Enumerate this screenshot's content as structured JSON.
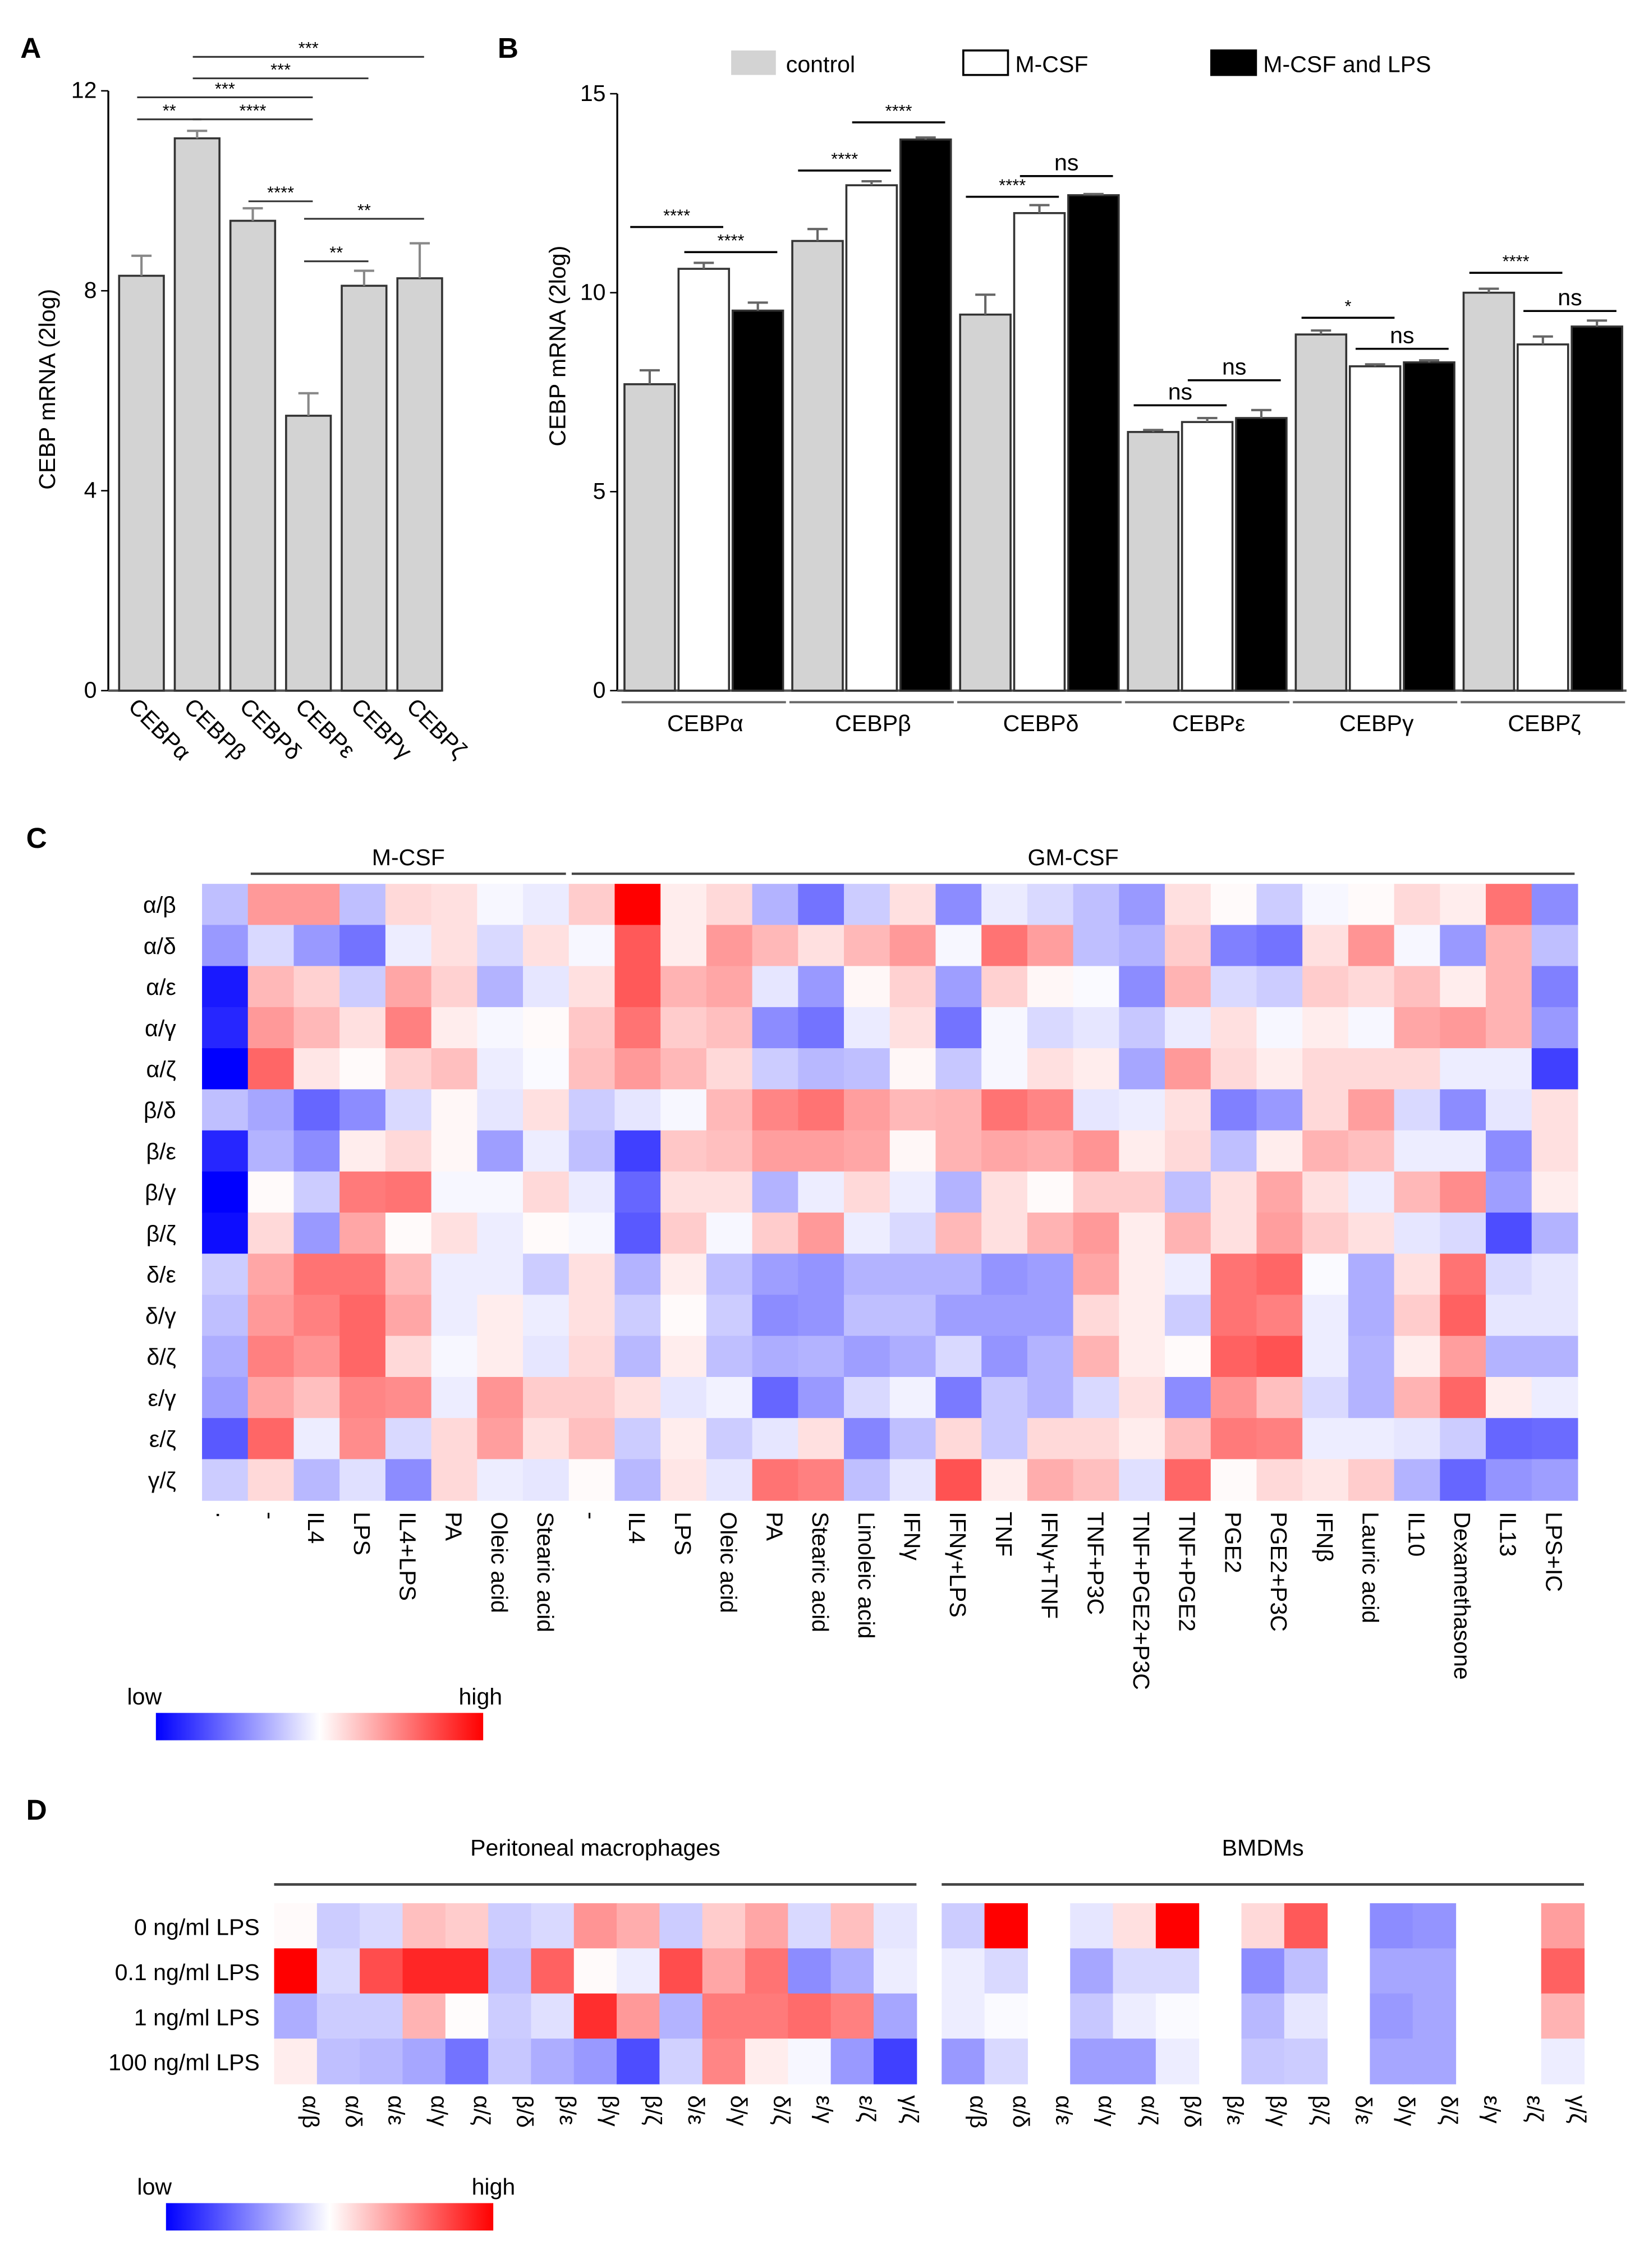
{
  "panels": {
    "a": "A",
    "b": "B",
    "c": "C",
    "d": "D"
  },
  "chart_data": [
    {
      "type": "bar",
      "panel": "A",
      "ylabel": "CEBP mRNA (2log)",
      "ylim": [
        0,
        12
      ],
      "yticks": [
        "0",
        "4",
        "8",
        "12"
      ],
      "categories": [
        "CEBPα",
        "CEBPβ",
        "CEBPδ",
        "CEBPε",
        "CEBPγ",
        "CEBPζ"
      ],
      "values": [
        8.3,
        11.05,
        9.4,
        5.5,
        8.1,
        8.25
      ],
      "errors": [
        0.4,
        0.15,
        0.25,
        0.45,
        0.3,
        0.7
      ],
      "color": "#d3d3d3",
      "significance": [
        {
          "from": 0,
          "to": 1,
          "y": 11.43,
          "label": "**"
        },
        {
          "from": 1,
          "to": 3,
          "y": 11.43,
          "label": "****"
        },
        {
          "from": 0,
          "to": 3,
          "y": 11.87,
          "label": "***"
        },
        {
          "from": 1,
          "to": 4,
          "y": 12.25,
          "label": "***"
        },
        {
          "from": 1,
          "to": 5,
          "y": 12.68,
          "label": "***"
        },
        {
          "from": 2,
          "to": 3,
          "y": 9.79,
          "label": "****"
        },
        {
          "from": 3,
          "to": 4,
          "y": 8.59,
          "label": "**"
        },
        {
          "from": 3,
          "to": 5,
          "y": 9.44,
          "label": "**"
        }
      ]
    },
    {
      "type": "bar",
      "panel": "B",
      "ylabel": "CEBP mRNA (2log)",
      "ylim": [
        0,
        15
      ],
      "yticks": [
        "0",
        "5",
        "10",
        "15"
      ],
      "categories": [
        "CEBPα",
        "CEBPβ",
        "CEBPδ",
        "CEBPε",
        "CEBPγ",
        "CEBPζ"
      ],
      "legend_position": "top",
      "series": [
        {
          "name": "control",
          "color": "#d3d3d3",
          "values": [
            7.7,
            11.3,
            9.45,
            6.5,
            8.95,
            10.0
          ],
          "errors": [
            0.35,
            0.3,
            0.5,
            0.05,
            0.1,
            0.1
          ]
        },
        {
          "name": "M-CSF",
          "color": "#ffffff",
          "values": [
            10.6,
            12.7,
            12.0,
            6.75,
            8.15,
            8.7
          ],
          "errors": [
            0.15,
            0.1,
            0.2,
            0.1,
            0.05,
            0.2
          ]
        },
        {
          "name": "M-CSF and LPS",
          "color": "#000000",
          "values": [
            9.55,
            13.85,
            12.45,
            6.85,
            8.25,
            9.15
          ],
          "errors": [
            0.2,
            0.05,
            0.03,
            0.2,
            0.05,
            0.15
          ]
        }
      ],
      "significance": [
        {
          "group": 0,
          "from": 0,
          "to": 1,
          "y": 11.65,
          "label": "****"
        },
        {
          "group": 0,
          "from": 1,
          "to": 2,
          "y": 11.02,
          "label": "****"
        },
        {
          "group": 1,
          "from": 0,
          "to": 1,
          "y": 13.07,
          "label": "****"
        },
        {
          "group": 1,
          "from": 1,
          "to": 2,
          "y": 14.28,
          "label": "****"
        },
        {
          "group": 2,
          "from": 0,
          "to": 1,
          "y": 12.41,
          "label": "****"
        },
        {
          "group": 2,
          "from": 1,
          "to": 2,
          "y": 12.93,
          "label": "ns"
        },
        {
          "group": 3,
          "from": 0,
          "to": 1,
          "y": 7.17,
          "label": "ns"
        },
        {
          "group": 3,
          "from": 1,
          "to": 2,
          "y": 7.8,
          "label": "ns"
        },
        {
          "group": 4,
          "from": 0,
          "to": 1,
          "y": 9.37,
          "label": "*"
        },
        {
          "group": 4,
          "from": 1,
          "to": 2,
          "y": 8.59,
          "label": "ns"
        },
        {
          "group": 5,
          "from": 0,
          "to": 1,
          "y": 10.5,
          "label": "****"
        },
        {
          "group": 5,
          "from": 1,
          "to": 2,
          "y": 9.54,
          "label": "ns"
        }
      ]
    },
    {
      "type": "heatmap",
      "panel": "C",
      "scale": {
        "low": "low",
        "high": "high",
        "low_color": "#0000ff",
        "mid_color": "#ffffff",
        "high_color": "#ff0000",
        "range": [
          -1,
          1
        ]
      },
      "groups": [
        {
          "label": "M-CSF",
          "start": 1,
          "end": 7
        },
        {
          "label": "GM-CSF",
          "start": 8,
          "end": 29
        }
      ],
      "rows": [
        "α/β",
        "α/δ",
        "α/ε",
        "α/γ",
        "α/ζ",
        "β/δ",
        "β/ε",
        "β/γ",
        "β/ζ",
        "δ/ε",
        "δ/γ",
        "δ/ζ",
        "ε/γ",
        "ε/ζ",
        "γ/ζ"
      ],
      "columns": [
        ".",
        "-",
        "IL4",
        "LPS",
        "IL4+LPS",
        "PA",
        "Oleic acid",
        "Stearic acid",
        "-",
        "IL4",
        "LPS",
        "Oleic acid",
        "PA",
        "Stearic acid",
        "Linoleic acid",
        "IFNγ",
        "IFNγ+LPS",
        "TNF",
        "IFNγ+TNF",
        "TNF+P3C",
        "TNF+PGE2+P3C",
        "TNF+PGE2",
        "PGE2",
        "PGE2+P3C",
        "IFNβ",
        "Lauric acid",
        "IL10",
        "Dexamethasone",
        "IL13",
        "LPS+IC"
      ],
      "values": [
        [
          -0.25,
          0.4,
          0.4,
          -0.25,
          0.15,
          0.12,
          -0.03,
          -0.08,
          0.2,
          1.0,
          0.07,
          0.15,
          -0.3,
          -0.55,
          -0.2,
          0.12,
          -0.45,
          -0.08,
          -0.15,
          -0.25,
          -0.4,
          0.12,
          0.02,
          -0.2,
          -0.03,
          0.02,
          0.15,
          0.07,
          0.55,
          -0.45
        ],
        [
          -0.4,
          -0.15,
          -0.4,
          -0.55,
          -0.07,
          0.12,
          -0.15,
          0.12,
          -0.03,
          0.65,
          0.07,
          0.4,
          0.28,
          0.12,
          0.28,
          0.4,
          -0.03,
          0.55,
          0.38,
          -0.25,
          -0.3,
          0.2,
          -0.5,
          -0.55,
          0.12,
          0.42,
          -0.03,
          -0.4,
          0.3,
          -0.25
        ],
        [
          -0.9,
          0.28,
          0.18,
          -0.2,
          0.35,
          0.18,
          -0.3,
          -0.1,
          0.12,
          0.65,
          0.3,
          0.35,
          -0.1,
          -0.4,
          0.03,
          0.18,
          -0.38,
          0.18,
          0.03,
          -0.02,
          -0.45,
          0.3,
          -0.15,
          -0.2,
          0.2,
          0.15,
          0.25,
          0.07,
          0.3,
          -0.5
        ],
        [
          -0.85,
          0.4,
          0.28,
          0.12,
          0.5,
          0.07,
          -0.03,
          0.02,
          0.22,
          0.55,
          0.2,
          0.25,
          -0.45,
          -0.55,
          -0.08,
          0.12,
          -0.55,
          -0.03,
          -0.15,
          -0.1,
          -0.22,
          -0.08,
          0.12,
          -0.03,
          0.07,
          -0.03,
          0.35,
          0.4,
          0.3,
          -0.4
        ],
        [
          -1.0,
          0.6,
          0.1,
          0.02,
          0.18,
          0.25,
          -0.07,
          -0.02,
          0.25,
          0.4,
          0.28,
          0.15,
          -0.2,
          -0.28,
          -0.25,
          0.03,
          -0.22,
          -0.03,
          0.12,
          0.07,
          -0.35,
          0.4,
          0.15,
          0.07,
          0.15,
          0.15,
          0.15,
          -0.07,
          -0.07,
          -0.75
        ],
        [
          -0.25,
          -0.35,
          -0.6,
          -0.45,
          -0.15,
          0.03,
          -0.1,
          0.12,
          -0.2,
          -0.1,
          -0.03,
          0.28,
          0.48,
          0.55,
          0.38,
          0.28,
          0.3,
          0.55,
          0.48,
          -0.1,
          -0.07,
          0.12,
          -0.5,
          -0.4,
          0.15,
          0.38,
          -0.15,
          -0.45,
          -0.1,
          0.12
        ],
        [
          -0.85,
          -0.3,
          -0.45,
          0.07,
          0.15,
          0.03,
          -0.38,
          -0.07,
          -0.25,
          -0.75,
          0.22,
          0.25,
          0.38,
          0.38,
          0.35,
          0.03,
          0.3,
          0.35,
          0.32,
          0.42,
          0.07,
          0.15,
          -0.25,
          0.07,
          0.3,
          0.25,
          -0.07,
          -0.07,
          -0.45,
          0.12
        ],
        [
          -1.0,
          0.02,
          -0.2,
          0.52,
          0.55,
          -0.03,
          -0.03,
          0.15,
          -0.08,
          -0.6,
          0.12,
          0.12,
          -0.3,
          -0.07,
          0.15,
          -0.07,
          -0.3,
          0.12,
          0.02,
          0.2,
          0.2,
          -0.25,
          0.12,
          0.35,
          0.12,
          -0.07,
          0.28,
          0.45,
          -0.38,
          0.07
        ],
        [
          -0.95,
          0.15,
          -0.4,
          0.35,
          0.02,
          0.12,
          -0.07,
          0.02,
          -0.03,
          -0.65,
          0.2,
          -0.03,
          0.2,
          0.4,
          -0.07,
          -0.15,
          0.28,
          0.12,
          0.3,
          0.4,
          0.07,
          0.3,
          0.12,
          0.38,
          0.2,
          0.12,
          -0.1,
          -0.15,
          -0.7,
          -0.3
        ],
        [
          -0.2,
          0.35,
          0.55,
          0.55,
          0.28,
          -0.07,
          -0.07,
          -0.2,
          0.12,
          -0.3,
          0.07,
          -0.25,
          -0.38,
          -0.42,
          -0.3,
          -0.3,
          -0.3,
          -0.42,
          -0.38,
          0.35,
          0.07,
          -0.07,
          0.55,
          0.6,
          -0.02,
          -0.32,
          0.12,
          0.55,
          -0.15,
          -0.1
        ],
        [
          -0.25,
          0.4,
          0.5,
          0.6,
          0.35,
          -0.07,
          0.07,
          -0.07,
          0.12,
          -0.2,
          0.02,
          -0.2,
          -0.45,
          -0.42,
          -0.25,
          -0.25,
          -0.38,
          -0.38,
          -0.38,
          0.15,
          0.07,
          -0.2,
          0.55,
          0.5,
          -0.07,
          -0.32,
          0.2,
          0.62,
          -0.1,
          -0.1
        ],
        [
          -0.32,
          0.5,
          0.42,
          0.6,
          0.15,
          -0.03,
          0.07,
          -0.1,
          0.15,
          -0.28,
          0.07,
          -0.25,
          -0.32,
          -0.3,
          -0.38,
          -0.32,
          -0.15,
          -0.42,
          -0.3,
          0.3,
          0.07,
          0.02,
          0.62,
          0.68,
          -0.07,
          -0.3,
          0.07,
          0.38,
          -0.3,
          -0.3
        ],
        [
          -0.38,
          0.35,
          0.25,
          0.48,
          0.45,
          -0.07,
          0.42,
          0.2,
          0.2,
          0.12,
          -0.1,
          -0.05,
          -0.6,
          -0.4,
          -0.15,
          -0.05,
          -0.52,
          -0.22,
          -0.3,
          -0.15,
          0.12,
          -0.45,
          0.42,
          0.25,
          -0.15,
          -0.3,
          0.3,
          0.6,
          0.07,
          -0.07
        ],
        [
          -0.65,
          0.6,
          -0.07,
          0.45,
          -0.15,
          0.15,
          0.38,
          0.12,
          0.25,
          -0.2,
          0.07,
          -0.2,
          -0.1,
          0.12,
          -0.48,
          -0.25,
          0.15,
          -0.22,
          0.15,
          0.15,
          0.07,
          0.25,
          0.52,
          0.5,
          -0.07,
          -0.07,
          -0.1,
          -0.2,
          -0.6,
          -0.58
        ],
        [
          -0.2,
          0.15,
          -0.28,
          -0.12,
          -0.45,
          0.15,
          -0.07,
          -0.1,
          0.02,
          -0.28,
          0.1,
          -0.1,
          0.55,
          0.5,
          -0.25,
          -0.1,
          0.68,
          0.07,
          0.32,
          0.25,
          -0.12,
          0.6,
          0.02,
          0.15,
          0.1,
          0.2,
          -0.3,
          -0.6,
          -0.42,
          -0.38
        ]
      ]
    },
    {
      "type": "heatmap",
      "panel": "D",
      "scale": {
        "low": "low",
        "high": "high",
        "low_color": "#0000ff",
        "mid_color": "#ffffff",
        "high_color": "#ff0000",
        "range": [
          -1,
          1
        ]
      },
      "rows": [
        "0 ng/ml LPS",
        "0.1 ng/ml LPS",
        "1 ng/ml LPS",
        "100 ng/ml LPS"
      ],
      "blocks": [
        {
          "label": "Peritoneal macrophages",
          "columns": [
            "α/β",
            "α/δ",
            "α/ε",
            "α/γ",
            "α/ζ",
            "β/δ",
            "β/ε",
            "β/γ",
            "β/ζ",
            "δ/ε",
            "δ/γ",
            "δ/ζ",
            "ε/γ",
            "ε/ζ",
            "γ/ζ"
          ],
          "values": [
            [
              0.02,
              -0.2,
              -0.15,
              0.25,
              0.2,
              -0.2,
              -0.15,
              0.42,
              0.32,
              -0.2,
              0.2,
              0.35,
              -0.15,
              0.25,
              -0.1
            ],
            [
              1.0,
              -0.15,
              0.7,
              0.85,
              0.85,
              -0.25,
              0.62,
              0.02,
              -0.07,
              0.7,
              0.35,
              0.55,
              -0.45,
              -0.32,
              -0.07
            ],
            [
              -0.32,
              -0.2,
              -0.2,
              0.3,
              0.01,
              -0.2,
              -0.12,
              0.82,
              0.4,
              -0.3,
              0.52,
              0.52,
              0.58,
              0.5,
              -0.35
            ],
            [
              0.07,
              -0.25,
              -0.28,
              -0.35,
              -0.55,
              -0.22,
              -0.32,
              -0.4,
              -0.7,
              -0.18,
              0.48,
              0.07,
              -0.03,
              -0.4,
              -0.75
            ]
          ]
        },
        {
          "label": "BMDMs",
          "columns": [
            "α/β",
            "α/δ",
            "α/ε",
            "α/γ",
            "α/ζ",
            "β/δ",
            "β/ε",
            "β/γ",
            "β/ζ",
            "δ/ε",
            "δ/γ",
            "δ/ζ",
            "ε/γ",
            "ε/ζ",
            "γ/ζ"
          ],
          "values": [
            [
              -0.2,
              1.0,
              null,
              -0.1,
              0.12,
              1.0,
              null,
              0.15,
              0.65,
              null,
              -0.45,
              -0.42,
              null,
              null,
              0.38
            ],
            [
              -0.07,
              -0.15,
              null,
              -0.35,
              -0.15,
              -0.15,
              null,
              -0.45,
              -0.25,
              null,
              -0.35,
              -0.35,
              null,
              null,
              0.62
            ],
            [
              -0.07,
              -0.02,
              null,
              -0.22,
              -0.07,
              -0.02,
              null,
              -0.28,
              -0.1,
              null,
              -0.4,
              -0.35,
              null,
              null,
              0.3
            ],
            [
              -0.4,
              -0.15,
              null,
              -0.38,
              -0.38,
              -0.07,
              null,
              -0.22,
              -0.2,
              null,
              -0.35,
              -0.35,
              null,
              null,
              -0.07
            ]
          ]
        }
      ]
    }
  ]
}
